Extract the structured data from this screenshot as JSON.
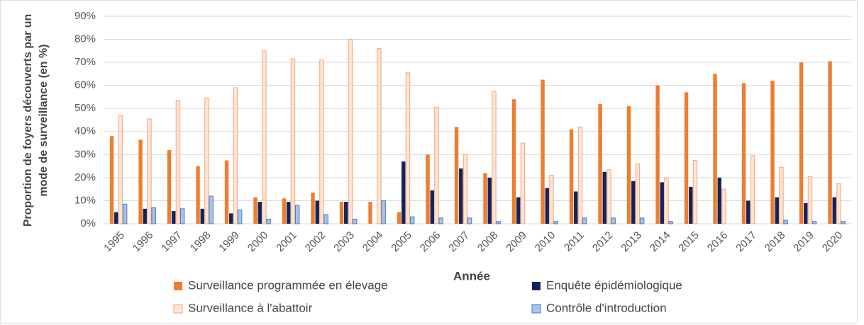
{
  "chart_data": {
    "type": "bar",
    "xlabel": "Année",
    "ylabel": [
      "Proportion de foyers découverts par un",
      "mode de surveillance (en %)"
    ],
    "categories": [
      "1995",
      "1996",
      "1997",
      "1998",
      "1999",
      "2000",
      "2001",
      "2002",
      "2003",
      "2004",
      "2005",
      "2006",
      "2007",
      "2008",
      "2009",
      "2010",
      "2011",
      "2012",
      "2013",
      "2014",
      "2015",
      "2016",
      "2017",
      "2018",
      "2019",
      "2020"
    ],
    "series": [
      {
        "name": "Surveillance programmée en élevage",
        "color": "#ed7d31",
        "values": [
          38,
          36.5,
          32,
          25,
          27.5,
          11.5,
          11,
          13.5,
          9.5,
          9.5,
          5,
          30,
          42,
          22,
          54,
          62.5,
          41,
          52,
          51,
          60,
          57,
          65,
          61,
          62,
          70,
          70.5
        ]
      },
      {
        "name": "Enquête épidémiologique",
        "color": "#14245a",
        "values": [
          5,
          6.5,
          5.5,
          6.5,
          4.5,
          9.5,
          9.5,
          10,
          9.5,
          0,
          27,
          14.5,
          24,
          20,
          11.5,
          15.5,
          14,
          22.5,
          18.5,
          18,
          16,
          20,
          10,
          11.5,
          9,
          11.5
        ]
      },
      {
        "name": "Surveillance à l'abattoir",
        "color": "#fbe5d8",
        "values": [
          47,
          45.5,
          53.5,
          54.5,
          59,
          75,
          71.5,
          71,
          80,
          76,
          65.5,
          50.5,
          30,
          57.5,
          35,
          21,
          42,
          23.5,
          26,
          20,
          27.5,
          15,
          29.5,
          24.5,
          20.5,
          17.5
        ]
      },
      {
        "name": "Contrôle d'introduction",
        "color": "#a9c4e8",
        "values": [
          8.5,
          7,
          6.5,
          12,
          6,
          2,
          8,
          4,
          2,
          10,
          3,
          2.5,
          2.5,
          1,
          0,
          1,
          2.5,
          2.5,
          2.5,
          1,
          0,
          0,
          0,
          1.5,
          1,
          1
        ]
      }
    ],
    "ylim": [
      0,
      90
    ],
    "yticks": [
      {
        "value": 0,
        "label": "0%"
      },
      {
        "value": 10,
        "label": "10%"
      },
      {
        "value": 20,
        "label": "20%"
      },
      {
        "value": 30,
        "label": "30%"
      },
      {
        "value": 40,
        "label": "40%"
      },
      {
        "value": 50,
        "label": "50%"
      },
      {
        "value": 60,
        "label": "60%"
      },
      {
        "value": 70,
        "label": "70%"
      },
      {
        "value": 80,
        "label": "80%"
      },
      {
        "value": 90,
        "label": "90%"
      }
    ],
    "grid": true,
    "legend": "bottom"
  }
}
